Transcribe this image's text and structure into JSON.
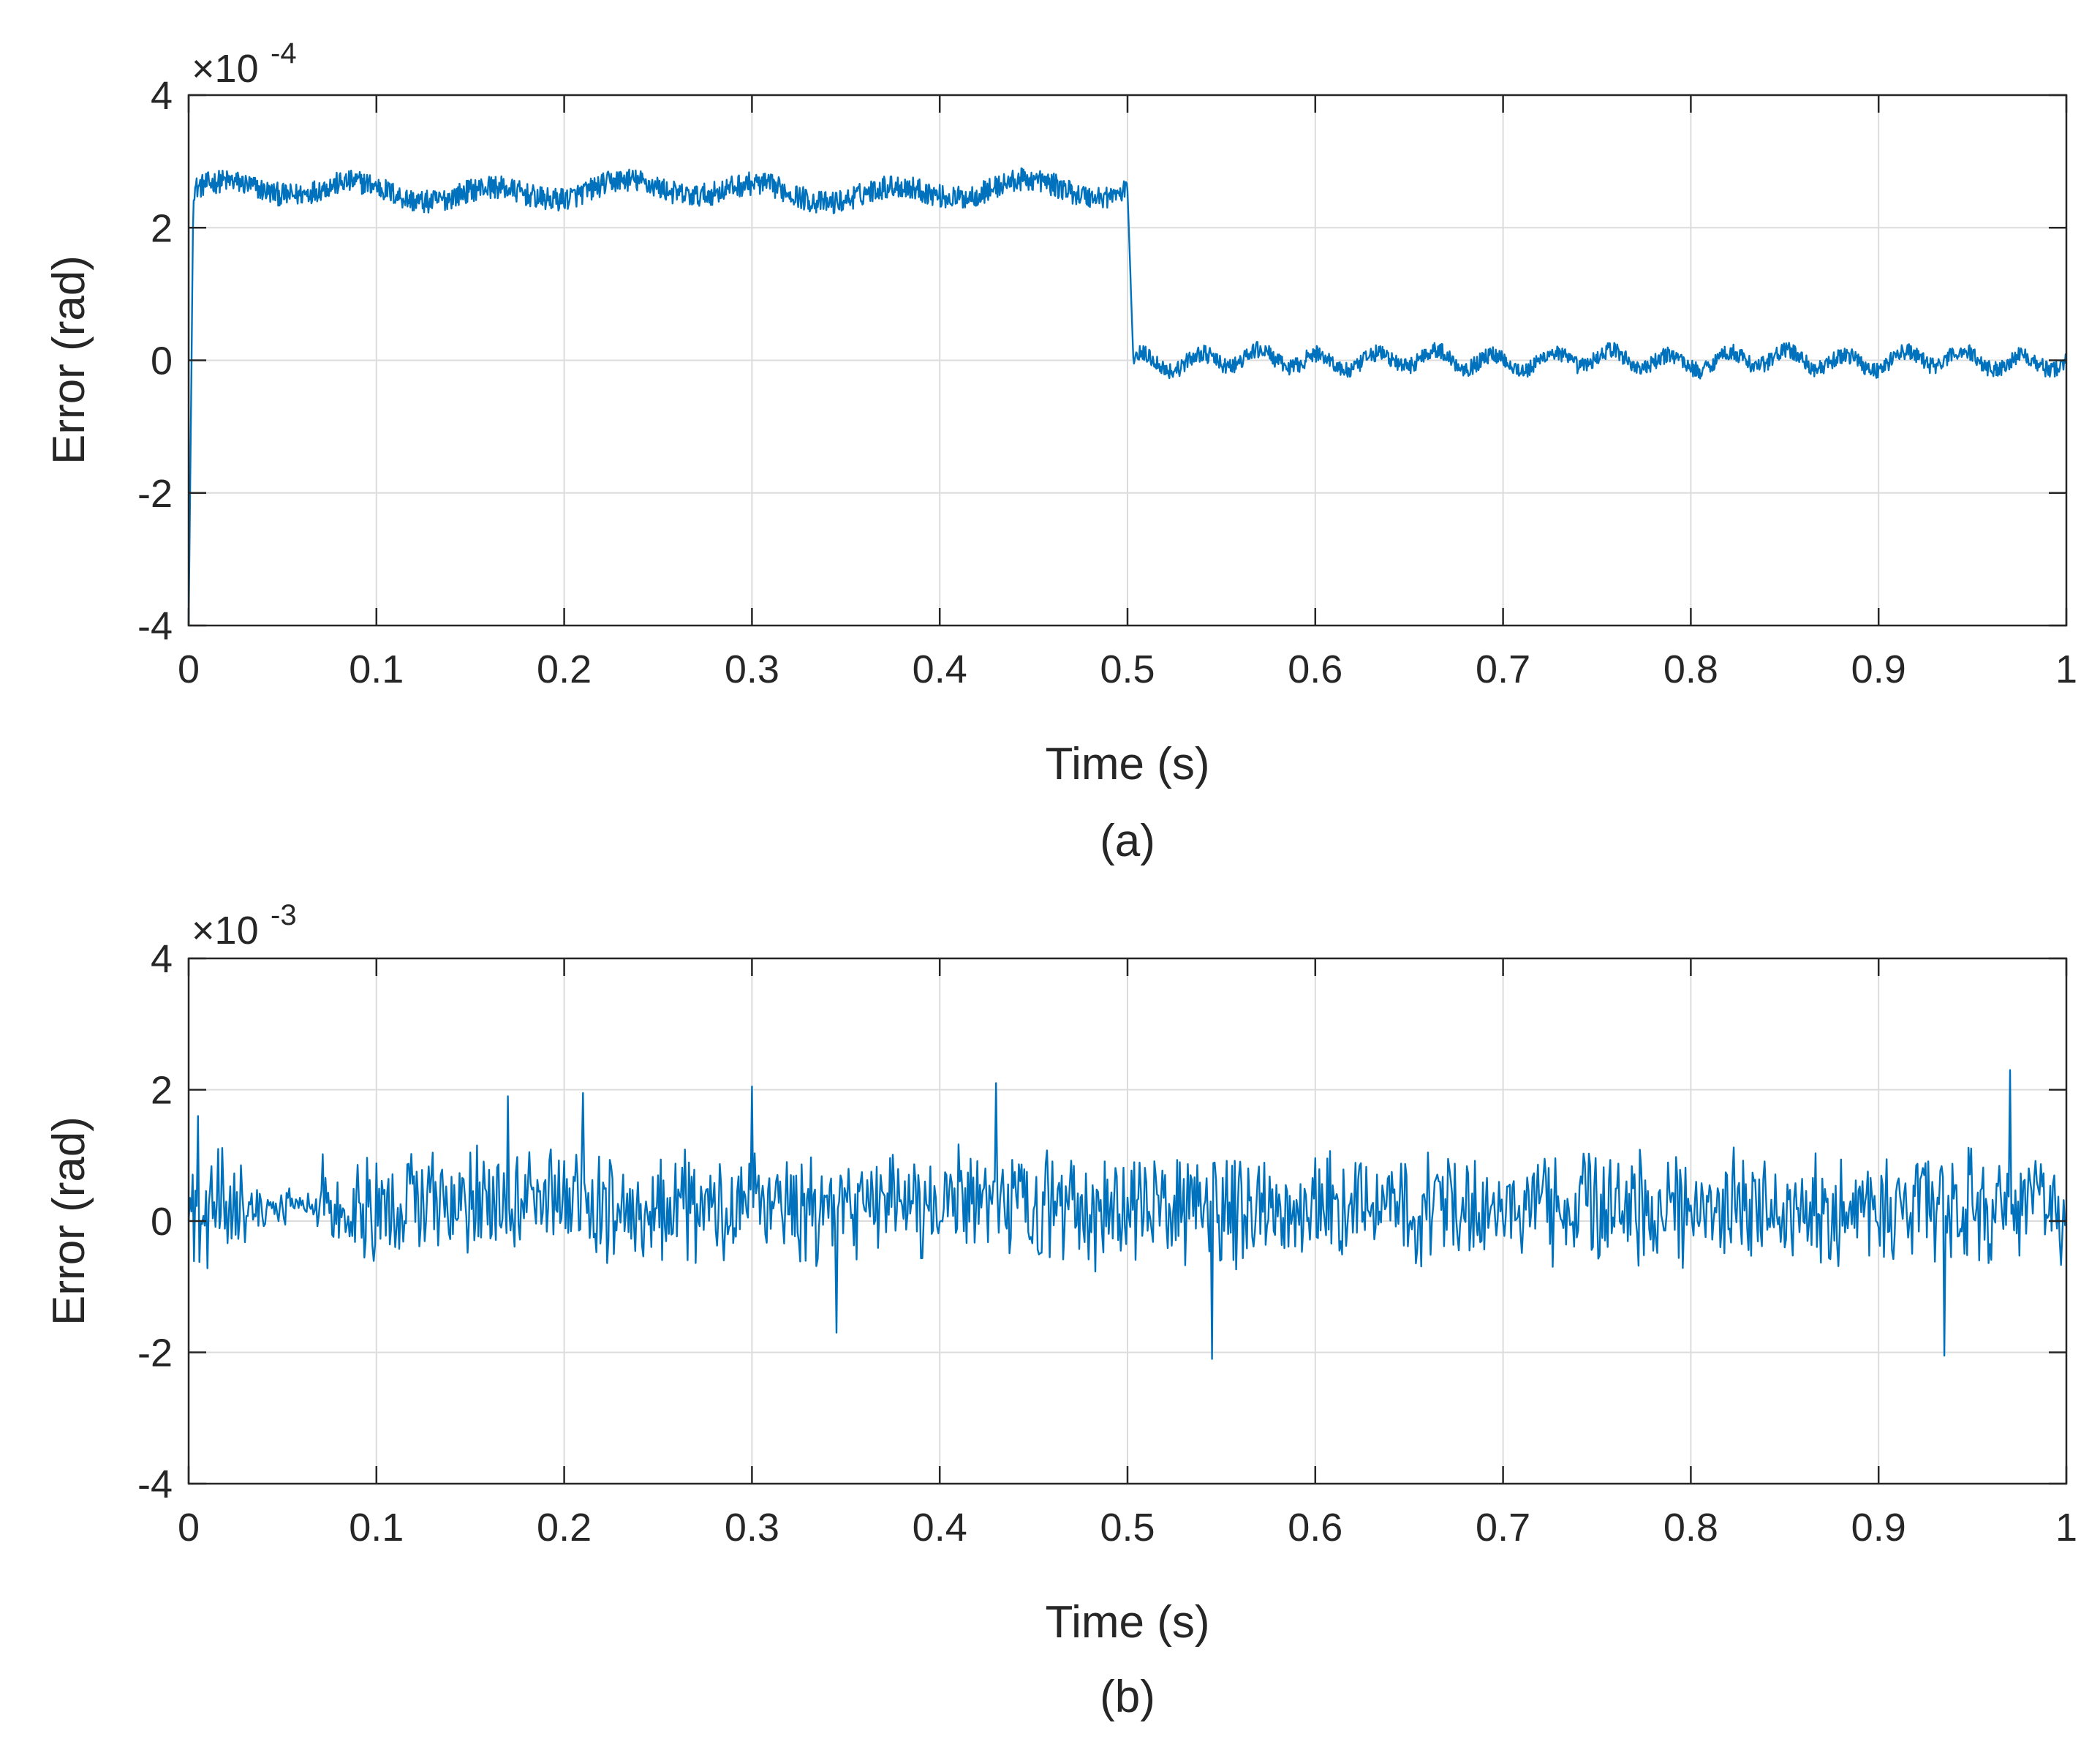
{
  "colors": {
    "series": "#0072bd",
    "axis": "#262626",
    "grid": "#dcdcdc"
  },
  "chart_data": [
    {
      "type": "line",
      "panel_label": "(a)",
      "title": "",
      "xlabel": "Time (s)",
      "ylabel": "Error (rad)",
      "y_exponent_base": "×10",
      "y_exponent_power": "-4",
      "xlim": [
        0,
        1
      ],
      "ylim": [
        -4,
        4
      ],
      "x_ticks": [
        "0",
        "0.1",
        "0.2",
        "0.3",
        "0.4",
        "0.5",
        "0.6",
        "0.7",
        "0.8",
        "0.9",
        "1"
      ],
      "y_ticks": [
        "-4",
        "-2",
        "0",
        "2",
        "4"
      ],
      "grid": true,
      "series": [
        {
          "name": "Error",
          "description": "Starts at -4, rises to ~2.5 by t=0.005 s, stays around 2.5 with ripple amplitude ~0.3 until t=0.5 s, then drops to ~0 with ripple ~0.2 until t=1 s",
          "keypoints": [
            {
              "x": 0.0,
              "y": -4.0
            },
            {
              "x": 0.005,
              "y": 2.5
            },
            {
              "x": 0.1,
              "y": 2.7
            },
            {
              "x": 0.2,
              "y": 2.65
            },
            {
              "x": 0.3,
              "y": 2.55
            },
            {
              "x": 0.4,
              "y": 2.5
            },
            {
              "x": 0.48,
              "y": 2.7
            },
            {
              "x": 0.5,
              "y": 2.5
            },
            {
              "x": 0.503,
              "y": 0.1
            },
            {
              "x": 0.6,
              "y": 0.0
            },
            {
              "x": 0.7,
              "y": 0.05
            },
            {
              "x": 0.8,
              "y": 0.0
            },
            {
              "x": 0.9,
              "y": 0.05
            },
            {
              "x": 1.0,
              "y": -0.1
            }
          ],
          "levels": {
            "pre_step_mean": 2.55,
            "pre_step_ripple": 0.35,
            "post_step_mean": 0.0,
            "post_step_ripple": 0.25,
            "step_time": 0.5
          }
        }
      ]
    },
    {
      "type": "line",
      "panel_label": "(b)",
      "title": "",
      "xlabel": "Time (s)",
      "ylabel": "Error (rad)",
      "y_exponent_base": "×10",
      "y_exponent_power": "-3",
      "xlim": [
        0,
        1
      ],
      "ylim": [
        -4,
        4
      ],
      "x_ticks": [
        "0",
        "0.1",
        "0.2",
        "0.3",
        "0.4",
        "0.5",
        "0.6",
        "0.7",
        "0.8",
        "0.9",
        "1"
      ],
      "y_ticks": [
        "-4",
        "-2",
        "0",
        "2",
        "4"
      ],
      "grid": true,
      "series": [
        {
          "name": "Error",
          "description": "Noisy signal centered near 0.2 with typical amplitude ~1, peaks near 2.3 at t≈0.97 s and minimum near -2.1 at t≈0.545 s",
          "keypoints": [
            {
              "x": 0.0,
              "y": 0.0
            },
            {
              "x": 0.005,
              "y": 1.6
            },
            {
              "x": 0.17,
              "y": 1.9
            },
            {
              "x": 0.21,
              "y": 1.95
            },
            {
              "x": 0.3,
              "y": 2.05
            },
            {
              "x": 0.345,
              "y": -1.7
            },
            {
              "x": 0.43,
              "y": 2.1
            },
            {
              "x": 0.545,
              "y": -2.1
            },
            {
              "x": 0.935,
              "y": -2.05
            },
            {
              "x": 0.97,
              "y": 2.3
            },
            {
              "x": 1.0,
              "y": 0.0
            }
          ],
          "levels": {
            "mean": 0.2,
            "typical_amplitude": 1.0,
            "max": 2.3,
            "min": -2.1
          }
        }
      ]
    }
  ]
}
